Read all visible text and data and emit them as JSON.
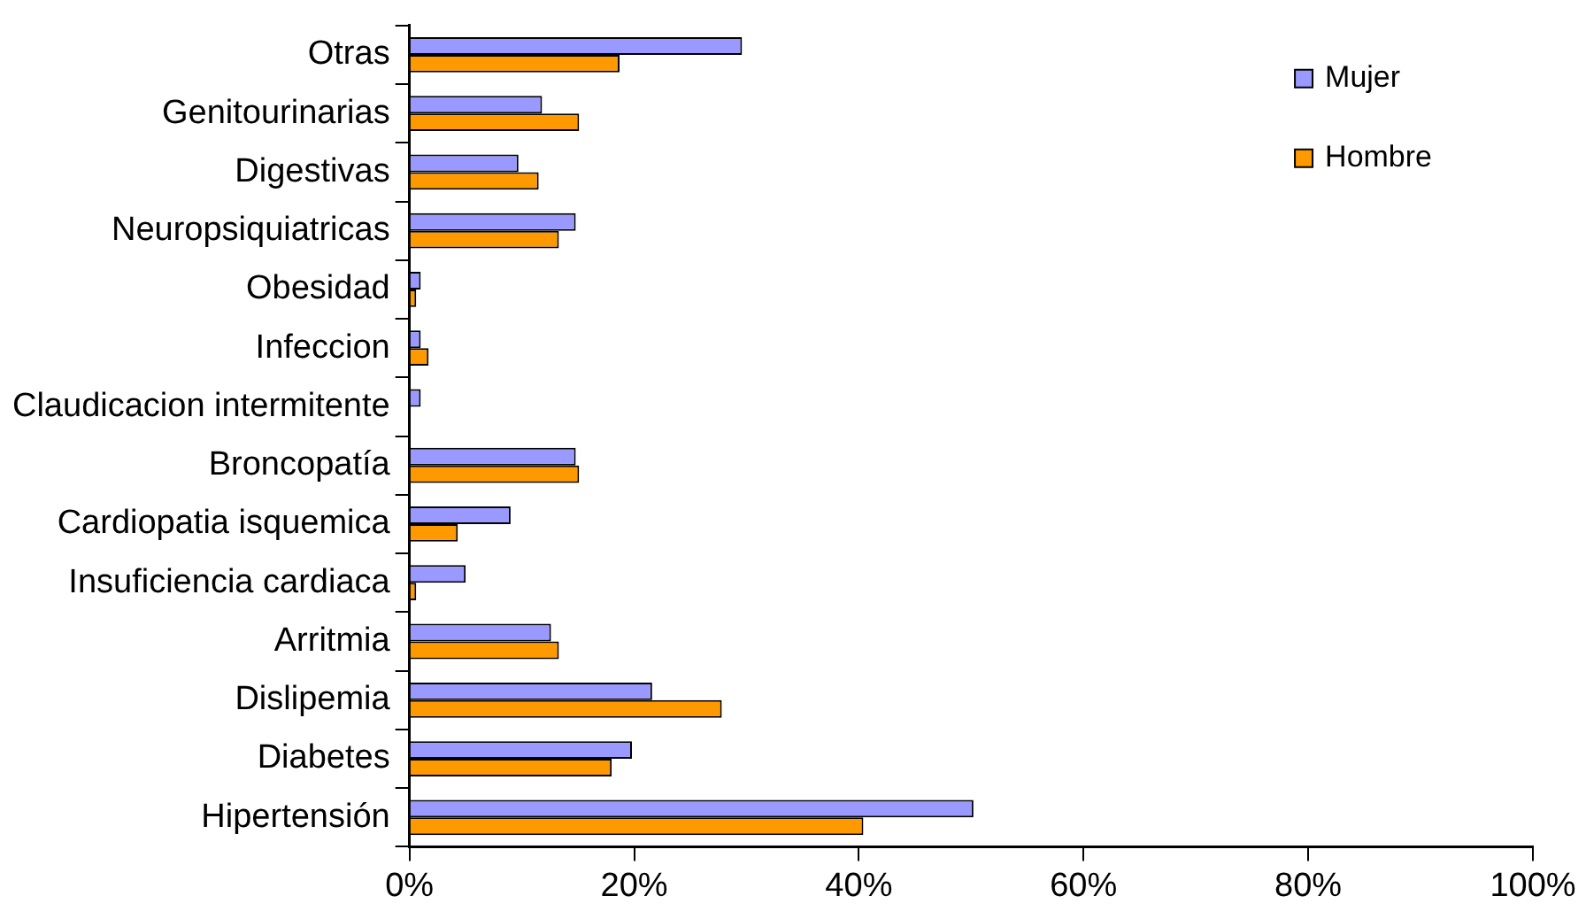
{
  "chart_data": {
    "type": "bar",
    "orientation": "horizontal",
    "categories": [
      "Otras",
      "Genitourinarias",
      "Digestivas",
      "Neuropsiquiatricas",
      "Obesidad",
      "Infeccion",
      "Claudicacion intermitente",
      "Broncopatía",
      "Cardiopatia isquemica",
      "Insuficiencia cardiaca",
      "Arritmia",
      "Dislipemia",
      "Diabetes",
      "Hipertensión"
    ],
    "series": [
      {
        "name": "Mujer",
        "color": "#9999ff",
        "values": [
          29.6,
          11.8,
          9.7,
          14.8,
          1.0,
          1.0,
          1.0,
          14.8,
          9.0,
          5.0,
          12.6,
          21.6,
          19.8,
          50.2
        ]
      },
      {
        "name": "Hombre",
        "color": "#ff9900",
        "values": [
          18.7,
          15.1,
          11.5,
          13.3,
          0.6,
          1.7,
          0,
          15.1,
          4.3,
          0.6,
          13.3,
          27.8,
          18.0,
          40.4
        ]
      }
    ],
    "xlim": [
      0,
      100
    ],
    "xticks": [
      {
        "value": 0,
        "label": "0%"
      },
      {
        "value": 20,
        "label": "20%"
      },
      {
        "value": 40,
        "label": "40%"
      },
      {
        "value": 60,
        "label": "60%"
      },
      {
        "value": 80,
        "label": "80%"
      },
      {
        "value": 100,
        "label": "100%"
      }
    ],
    "grid": false,
    "legend": "top right"
  }
}
